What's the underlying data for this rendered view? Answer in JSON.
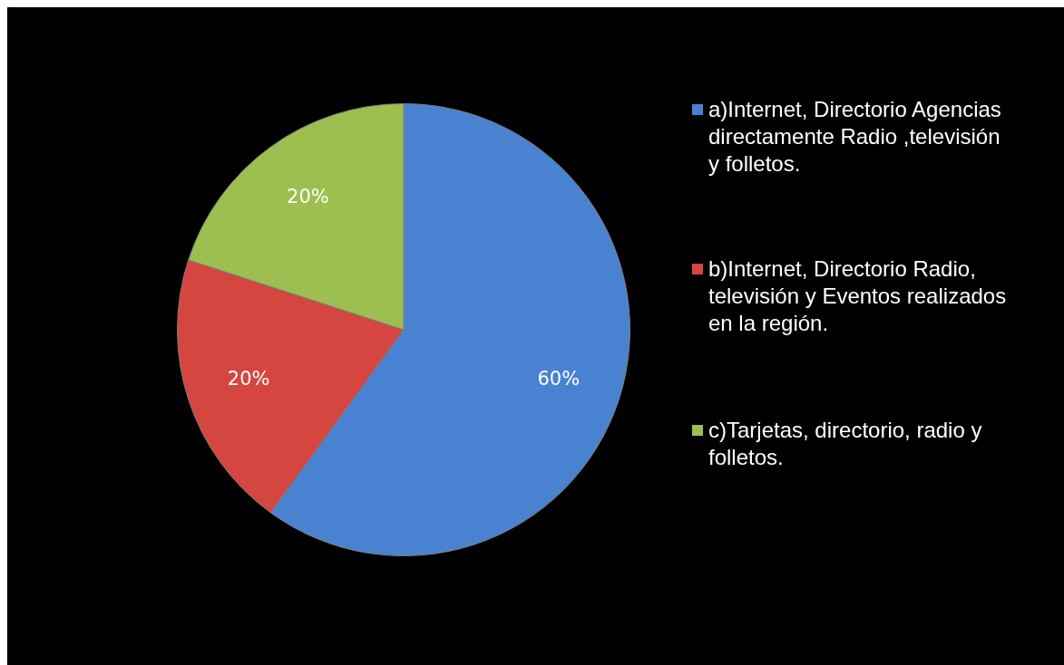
{
  "chart_data": {
    "type": "pie",
    "categories": [
      "a)Internet, Directorio Agencias directamente Radio ,televisión y folletos.",
      "b)Internet, Directorio Radio, televisión y Eventos realizados en la región.",
      "c)Tarjetas, directorio, radio y folletos."
    ],
    "values": [
      60,
      20,
      20
    ],
    "colors": [
      "#4a82d2",
      "#d4463f",
      "#9dbf4f"
    ],
    "value_labels": [
      "60%",
      "20%",
      "20%"
    ],
    "legend": "right"
  }
}
